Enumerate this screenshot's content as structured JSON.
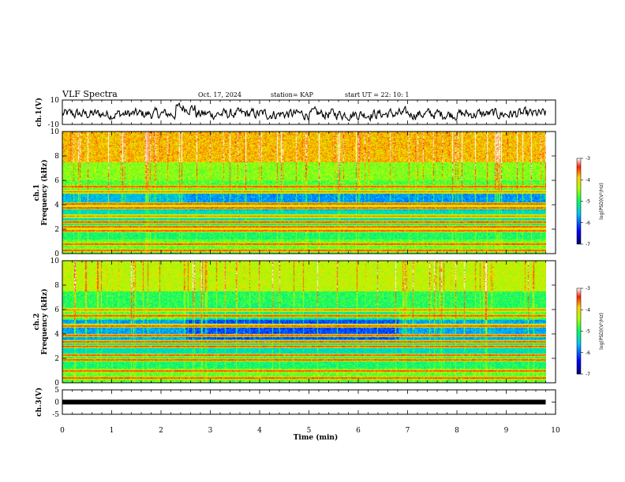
{
  "header": {
    "title": "VLF Spectra",
    "date": "Oct. 17, 2024",
    "station": "station= KAP",
    "start_ut": "start  UT  =   22: 10: 1"
  },
  "chart_data": [
    {
      "type": "line",
      "name": "ch1-waveform",
      "ylabel": "ch.1(V)",
      "ylim": [
        -10,
        10
      ],
      "yticks": [
        "10",
        "-10"
      ],
      "xlim": [
        0,
        10
      ],
      "color": "#000000"
    },
    {
      "type": "heatmap",
      "name": "ch1-spectrogram",
      "ylabel": "ch.1\nFrequency (kHz)",
      "ylim": [
        0,
        10
      ],
      "yticks": [
        "0",
        "2",
        "4",
        "6",
        "8",
        "10"
      ],
      "xlim": [
        0,
        10
      ],
      "colorbar": {
        "label": "log(PSD)(V²/Hz)",
        "range": [
          -7,
          -3
        ],
        "ticks": [
          "-3",
          "-4",
          "-5",
          "-6",
          "-7"
        ]
      },
      "data_end_min": 9.8
    },
    {
      "type": "heatmap",
      "name": "ch2-spectrogram",
      "ylabel": "ch.2\nFrequency (kHz)",
      "ylim": [
        0,
        10
      ],
      "yticks": [
        "0",
        "2",
        "4",
        "6",
        "8",
        "10"
      ],
      "xlim": [
        0,
        10
      ],
      "colorbar": {
        "label": "log(PSD)(V²/Hz)",
        "range": [
          -7,
          -3
        ],
        "ticks": [
          "-3",
          "-4",
          "-5",
          "-6",
          "-7"
        ]
      },
      "data_end_min": 9.8
    },
    {
      "type": "line",
      "name": "ch3-signal",
      "ylabel": "ch.3(V)",
      "ylim": [
        -5,
        5
      ],
      "yticks": [
        "5",
        "0",
        "-5"
      ],
      "xlim": [
        0,
        10
      ],
      "level_v": 0,
      "color": "#000000"
    }
  ],
  "xaxis": {
    "label": "Time (min)",
    "ticks": [
      "0",
      "1",
      "2",
      "3",
      "4",
      "5",
      "6",
      "7",
      "8",
      "9",
      "10"
    ]
  },
  "colormap": [
    "#000080",
    "#0000ff",
    "#0080ff",
    "#00ffff",
    "#00ff80",
    "#80ff00",
    "#ffff00",
    "#ff8000",
    "#ff0000",
    "#ffffff"
  ]
}
